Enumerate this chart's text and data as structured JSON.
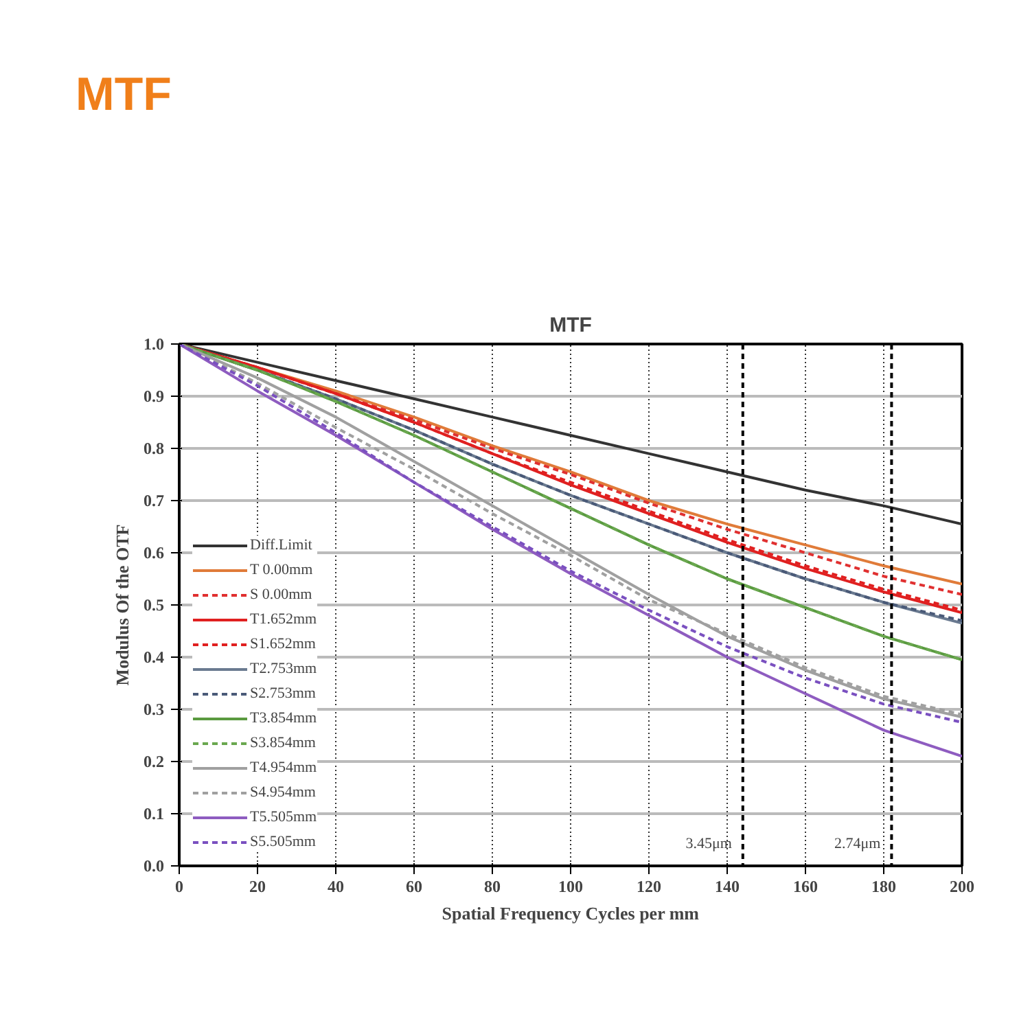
{
  "chart_data": {
    "type": "line",
    "title": "MTF",
    "annotations": [
      "MTF"
    ],
    "xlabel": "Spatial Frequency Cycles per mm",
    "ylabel": "Modulus Of the OTF",
    "x": [
      0,
      20,
      40,
      60,
      80,
      100,
      120,
      140,
      160,
      180,
      200
    ],
    "series": [
      {
        "name": "Diff.Limit",
        "color": "#333333",
        "line_style": "solid",
        "values": [
          1.0,
          0.965,
          0.93,
          0.895,
          0.86,
          0.825,
          0.79,
          0.755,
          0.72,
          0.69,
          0.655
        ]
      },
      {
        "name": "T 0.00mm",
        "color": "#e07b39",
        "line_style": "solid",
        "values": [
          1.0,
          0.955,
          0.91,
          0.86,
          0.805,
          0.755,
          0.7,
          0.655,
          0.615,
          0.575,
          0.54
        ]
      },
      {
        "name": "S 0.00mm",
        "color": "#e03030",
        "line_style": "dashed",
        "values": [
          1.0,
          0.955,
          0.905,
          0.855,
          0.8,
          0.75,
          0.695,
          0.645,
          0.6,
          0.555,
          0.52
        ]
      },
      {
        "name": "T1.652mm",
        "color": "#e02020",
        "line_style": "solid",
        "values": [
          1.0,
          0.955,
          0.905,
          0.85,
          0.79,
          0.73,
          0.675,
          0.62,
          0.57,
          0.525,
          0.485
        ]
      },
      {
        "name": "S1.652mm",
        "color": "#e02020",
        "line_style": "dashed",
        "values": [
          1.0,
          0.955,
          0.905,
          0.85,
          0.79,
          0.735,
          0.68,
          0.625,
          0.575,
          0.53,
          0.49
        ]
      },
      {
        "name": "T2.753mm",
        "color": "#6a7a90",
        "line_style": "solid",
        "values": [
          1.0,
          0.95,
          0.895,
          0.835,
          0.77,
          0.71,
          0.655,
          0.6,
          0.55,
          0.505,
          0.465
        ]
      },
      {
        "name": "S2.753mm",
        "color": "#4a5a78",
        "line_style": "dashed",
        "values": [
          1.0,
          0.95,
          0.895,
          0.835,
          0.77,
          0.71,
          0.655,
          0.6,
          0.55,
          0.505,
          0.47
        ]
      },
      {
        "name": "T3.854mm",
        "color": "#5a9a40",
        "line_style": "solid",
        "values": [
          1.0,
          0.95,
          0.89,
          0.825,
          0.755,
          0.685,
          0.615,
          0.55,
          0.495,
          0.44,
          0.395
        ]
      },
      {
        "name": "S3.854mm",
        "color": "#6aa84f",
        "line_style": "dashed",
        "values": [
          1.0,
          0.95,
          0.89,
          0.825,
          0.755,
          0.685,
          0.615,
          0.55,
          0.495,
          0.44,
          0.395
        ]
      },
      {
        "name": "T4.954mm",
        "color": "#a0a0a0",
        "line_style": "solid",
        "values": [
          1.0,
          0.935,
          0.86,
          0.775,
          0.69,
          0.605,
          0.52,
          0.44,
          0.375,
          0.32,
          0.285
        ]
      },
      {
        "name": "S4.954mm",
        "color": "#a0a0a0",
        "line_style": "dashed",
        "values": [
          1.0,
          0.925,
          0.84,
          0.76,
          0.675,
          0.595,
          0.51,
          0.445,
          0.38,
          0.325,
          0.29
        ]
      },
      {
        "name": "T5.505mm",
        "color": "#8e5cc0",
        "line_style": "solid",
        "values": [
          1.0,
          0.91,
          0.825,
          0.735,
          0.645,
          0.56,
          0.48,
          0.4,
          0.33,
          0.26,
          0.21
        ]
      },
      {
        "name": "S5.505mm",
        "color": "#7a50c0",
        "line_style": "dashed",
        "values": [
          1.0,
          0.92,
          0.83,
          0.735,
          0.65,
          0.565,
          0.49,
          0.42,
          0.36,
          0.31,
          0.275
        ]
      }
    ],
    "ref_lines": [
      {
        "axis": "x",
        "value": 144,
        "label": "3.45μm",
        "color": "#000000",
        "line_style": "dashed"
      },
      {
        "axis": "x",
        "value": 182,
        "label": "2.74μm",
        "color": "#000000",
        "line_style": "dashed"
      }
    ],
    "xlim": [
      0,
      200
    ],
    "xticks": [
      0,
      20,
      40,
      60,
      80,
      100,
      120,
      140,
      160,
      180,
      200
    ],
    "ylim": [
      0,
      1.0
    ],
    "yticks": [
      {
        "value": 0,
        "label": "0.0"
      },
      0.1,
      0.2,
      0.3,
      0.4,
      0.5,
      0.6,
      0.7,
      0.8,
      0.9,
      {
        "value": 1.0,
        "label": "1.0"
      }
    ],
    "grid": true,
    "legend": "bottom left",
    "marker": "none"
  }
}
